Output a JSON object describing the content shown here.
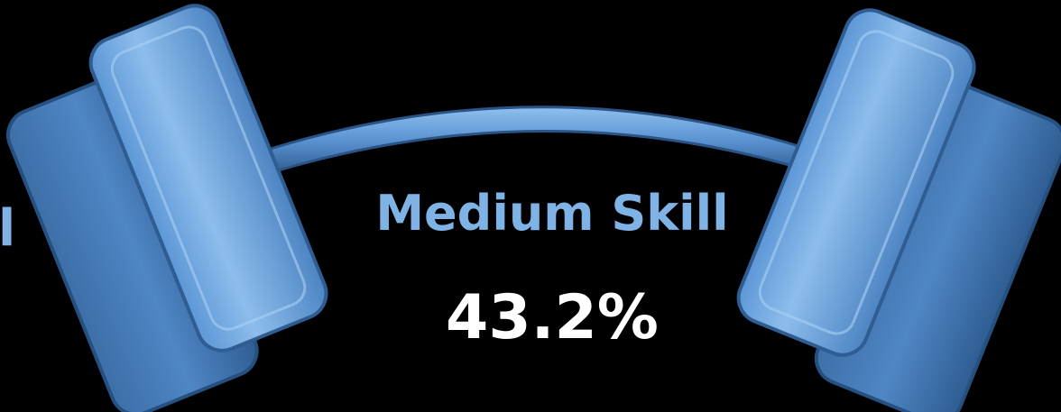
{
  "edge_text": "l",
  "label": "Medium Skill",
  "value_text": "43.2%"
}
